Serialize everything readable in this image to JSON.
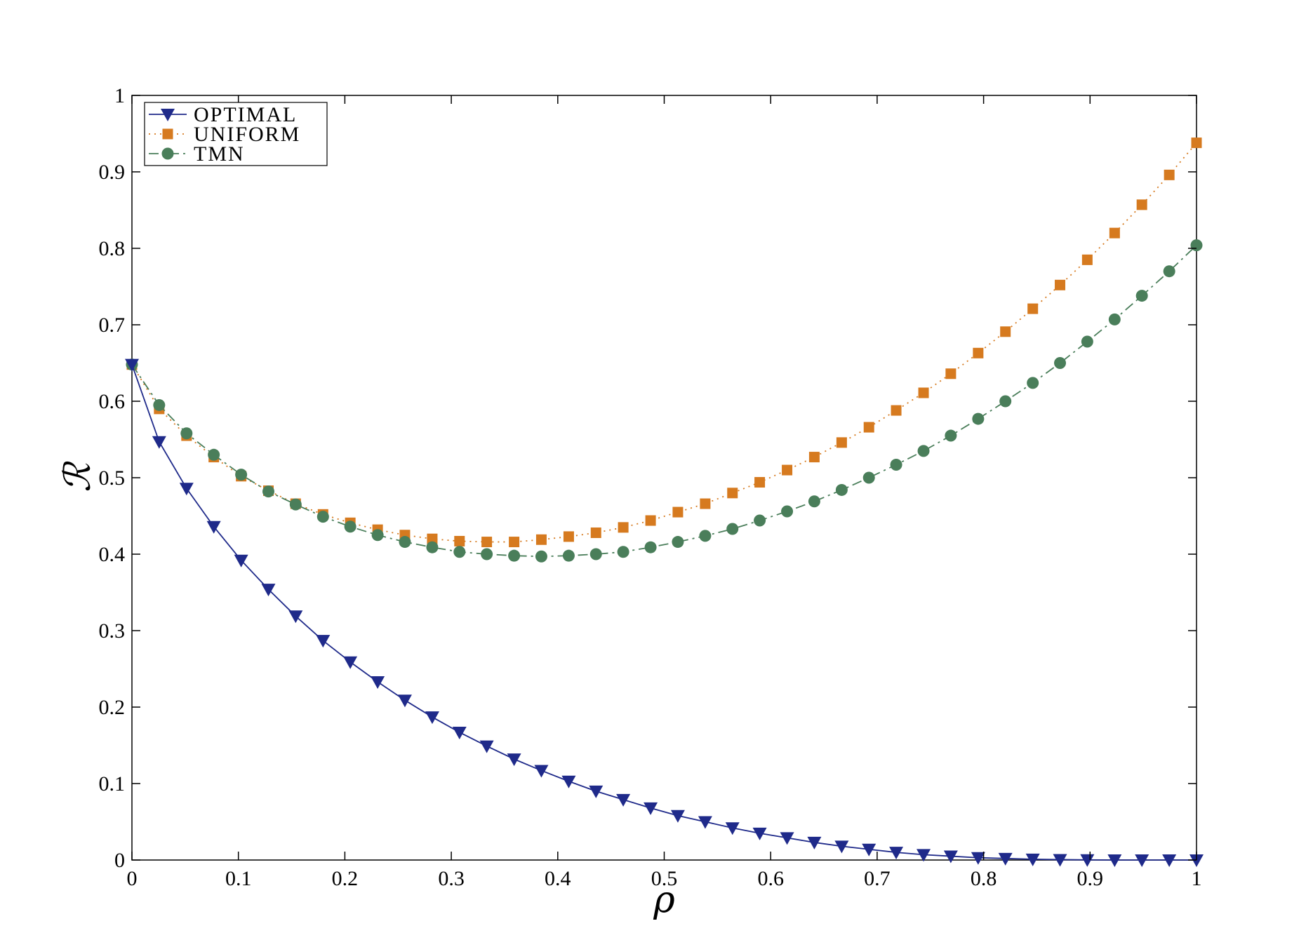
{
  "chart_data": {
    "type": "line",
    "title": "",
    "xlabel": "ρ",
    "ylabel": "ℛ",
    "xlim": [
      0,
      1
    ],
    "ylim": [
      0,
      1
    ],
    "xticks": [
      "0",
      "0.1",
      "0.2",
      "0.3",
      "0.4",
      "0.5",
      "0.6",
      "0.7",
      "0.8",
      "0.9",
      "1"
    ],
    "yticks": [
      "0",
      "0.1",
      "0.2",
      "0.3",
      "0.4",
      "0.5",
      "0.6",
      "0.7",
      "0.8",
      "0.9",
      "1"
    ],
    "grid": false,
    "legend_position": "top-left",
    "x": [
      0,
      0.0256,
      0.0513,
      0.0769,
      0.1026,
      0.1282,
      0.1538,
      0.1795,
      0.2051,
      0.2308,
      0.2564,
      0.2821,
      0.3077,
      0.3333,
      0.359,
      0.3846,
      0.4103,
      0.4359,
      0.4615,
      0.4872,
      0.5128,
      0.5385,
      0.5641,
      0.5897,
      0.6154,
      0.641,
      0.6667,
      0.6923,
      0.7179,
      0.7436,
      0.7692,
      0.7949,
      0.8205,
      0.8462,
      0.8718,
      0.8974,
      0.9231,
      0.9487,
      0.9744,
      1
    ],
    "series": [
      {
        "name": "OPTIMAL",
        "color": "#1f2a8a",
        "marker": "triangle-down",
        "line_style": "solid",
        "values": [
          0.648,
          0.547,
          0.486,
          0.436,
          0.392,
          0.354,
          0.319,
          0.287,
          0.259,
          0.233,
          0.209,
          0.187,
          0.167,
          0.149,
          0.132,
          0.117,
          0.103,
          0.09,
          0.079,
          0.068,
          0.058,
          0.05,
          0.042,
          0.035,
          0.029,
          0.023,
          0.018,
          0.014,
          0.01,
          0.007,
          0.005,
          0.003,
          0.002,
          0.001,
          0.0005,
          0.0002,
          0,
          0,
          0,
          0
        ]
      },
      {
        "name": "UNIFORM",
        "color": "#d67a1f",
        "marker": "square",
        "line_style": "dotted",
        "values": [
          0.648,
          0.59,
          0.555,
          0.527,
          0.502,
          0.483,
          0.466,
          0.452,
          0.441,
          0.432,
          0.425,
          0.42,
          0.417,
          0.416,
          0.416,
          0.419,
          0.423,
          0.428,
          0.435,
          0.444,
          0.455,
          0.466,
          0.48,
          0.494,
          0.51,
          0.527,
          0.546,
          0.566,
          0.588,
          0.611,
          0.636,
          0.663,
          0.691,
          0.721,
          0.752,
          0.785,
          0.82,
          0.857,
          0.896,
          0.938
        ]
      },
      {
        "name": "TMN",
        "color": "#4a7e5a",
        "marker": "circle",
        "line_style": "dash-dot",
        "values": [
          0.648,
          0.595,
          0.558,
          0.53,
          0.504,
          0.482,
          0.465,
          0.449,
          0.436,
          0.425,
          0.416,
          0.409,
          0.403,
          0.4,
          0.398,
          0.397,
          0.398,
          0.4,
          0.403,
          0.409,
          0.416,
          0.424,
          0.433,
          0.444,
          0.456,
          0.469,
          0.484,
          0.5,
          0.517,
          0.535,
          0.555,
          0.577,
          0.6,
          0.624,
          0.65,
          0.678,
          0.707,
          0.738,
          0.77,
          0.804
        ]
      }
    ]
  }
}
